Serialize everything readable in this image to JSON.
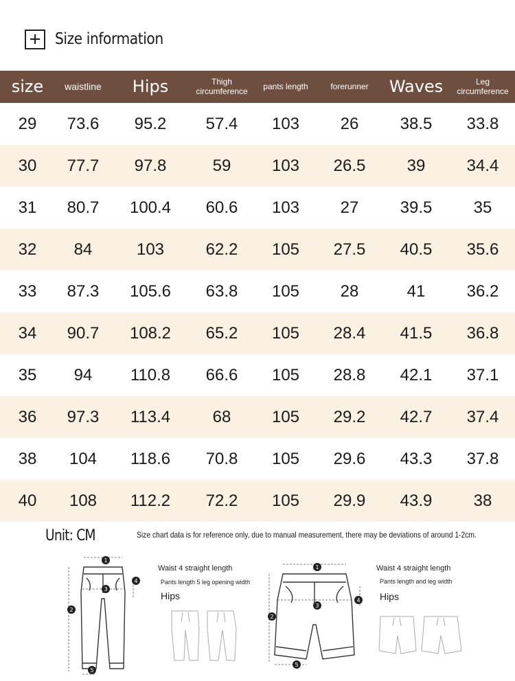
{
  "heading": {
    "title": "Size information",
    "icon": "plus-icon"
  },
  "table": {
    "headers": [
      "size",
      "waistline",
      "Hips",
      "Thigh circumference",
      "pants length",
      "forerunner",
      "Waves",
      "Leg circumference"
    ],
    "rows": [
      [
        "29",
        "73.6",
        "95.2",
        "57.4",
        "103",
        "26",
        "38.5",
        "33.8"
      ],
      [
        "30",
        "77.7",
        "97.8",
        "59",
        "103",
        "26.5",
        "39",
        "34.4"
      ],
      [
        "31",
        "80.7",
        "100.4",
        "60.6",
        "103",
        "27",
        "39.5",
        "35"
      ],
      [
        "32",
        "84",
        "103",
        "62.2",
        "105",
        "27.5",
        "40.5",
        "35.6"
      ],
      [
        "33",
        "87.3",
        "105.6",
        "63.8",
        "105",
        "28",
        "41",
        "36.2"
      ],
      [
        "34",
        "90.7",
        "108.2",
        "65.2",
        "105",
        "28.4",
        "41.5",
        "36.8"
      ],
      [
        "35",
        "94",
        "110.8",
        "66.6",
        "105",
        "28.8",
        "42.1",
        "37.1"
      ],
      [
        "36",
        "97.3",
        "113.4",
        "68",
        "105",
        "29.2",
        "42.7",
        "37.4"
      ],
      [
        "38",
        "104",
        "118.6",
        "70.8",
        "105",
        "29.6",
        "43.3",
        "37.8"
      ],
      [
        "40",
        "108",
        "112.2",
        "72.2",
        "105",
        "29.9",
        "43.9",
        "38"
      ]
    ],
    "header_color": "#6e4f3f",
    "stripe_color": "#fbf1e2"
  },
  "footer": {
    "unit": "Unit: CM",
    "note": "Size chart data is for reference only, due to manual measurement, there may be deviations of around 1-2cm.",
    "diagram_left": {
      "line1": "Waist 4 straight length",
      "line2": "Pants length 5 leg opening width",
      "line3": "Hips",
      "markers": [
        "1",
        "2",
        "3",
        "4",
        "5"
      ]
    },
    "diagram_right": {
      "line1": "Waist 4 straight length",
      "line2": "Pants length and leg width",
      "line3": "Hips",
      "markers": [
        "1",
        "2",
        "3",
        "4",
        "5"
      ]
    }
  }
}
